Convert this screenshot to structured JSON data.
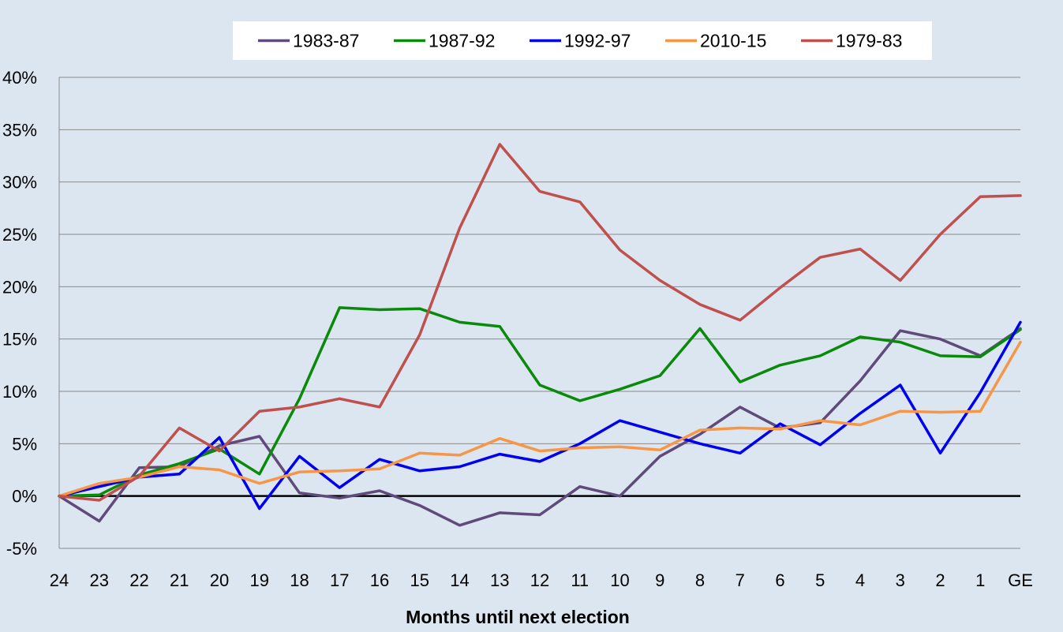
{
  "chart_data": {
    "type": "line",
    "title": "",
    "xlabel": "Months until next election",
    "ylabel": "",
    "x": [
      "24",
      "23",
      "22",
      "21",
      "20",
      "19",
      "18",
      "17",
      "16",
      "15",
      "14",
      "13",
      "12",
      "11",
      "10",
      "9",
      "8",
      "7",
      "6",
      "5",
      "4",
      "3",
      "2",
      "1",
      "GE"
    ],
    "ylim": [
      -5,
      40
    ],
    "yticks": [
      -5,
      0,
      5,
      10,
      15,
      20,
      25,
      30,
      35,
      40
    ],
    "ytick_labels": [
      "-5%",
      "0%",
      "5%",
      "10%",
      "15%",
      "20%",
      "25%",
      "30%",
      "35%",
      "40%"
    ],
    "grid": "horizontal",
    "legend_position": "top",
    "zero_line": true,
    "series": [
      {
        "name": "1983-87",
        "color": "#604a7b",
        "values": [
          0,
          -2.4,
          2.7,
          2.8,
          4.8,
          5.7,
          0.3,
          -0.2,
          0.5,
          -0.9,
          -2.8,
          -1.6,
          -1.8,
          0.9,
          0,
          3.8,
          5.9,
          8.5,
          6.5,
          7.0,
          11.0,
          15.8,
          15.0,
          13.4,
          16.0
        ]
      },
      {
        "name": "1987-92",
        "color": "#0a8a0a",
        "values": [
          0,
          0.1,
          2.0,
          3.1,
          4.5,
          2.1,
          9.3,
          18.0,
          17.8,
          17.9,
          16.6,
          16.2,
          10.6,
          9.1,
          10.2,
          11.5,
          16.0,
          10.9,
          12.5,
          13.4,
          15.2,
          14.7,
          13.4,
          13.3,
          15.9
        ]
      },
      {
        "name": "1992-97",
        "color": "#0000f0",
        "values": [
          0,
          0.9,
          1.8,
          2.1,
          5.6,
          -1.2,
          3.8,
          0.8,
          3.5,
          2.4,
          2.8,
          4.0,
          3.3,
          5.0,
          7.2,
          6.1,
          5.0,
          4.1,
          6.9,
          4.9,
          7.9,
          10.6,
          4.1,
          9.9,
          16.6
        ]
      },
      {
        "name": "2010-15",
        "color": "#f79646",
        "values": [
          0,
          1.2,
          1.8,
          2.8,
          2.5,
          1.2,
          2.3,
          2.4,
          2.6,
          4.1,
          3.9,
          5.5,
          4.3,
          4.6,
          4.7,
          4.4,
          6.3,
          6.5,
          6.4,
          7.2,
          6.8,
          8.1,
          8.0,
          8.1,
          14.7
        ]
      },
      {
        "name": "1979-83",
        "color": "#c0504d",
        "values": [
          0,
          -0.4,
          1.9,
          6.5,
          4.3,
          8.1,
          8.5,
          9.3,
          8.5,
          15.4,
          25.6,
          33.6,
          29.1,
          28.1,
          23.5,
          20.6,
          18.3,
          16.8,
          19.9,
          22.8,
          23.6,
          20.6,
          25.0,
          28.6,
          28.7
        ]
      }
    ]
  }
}
